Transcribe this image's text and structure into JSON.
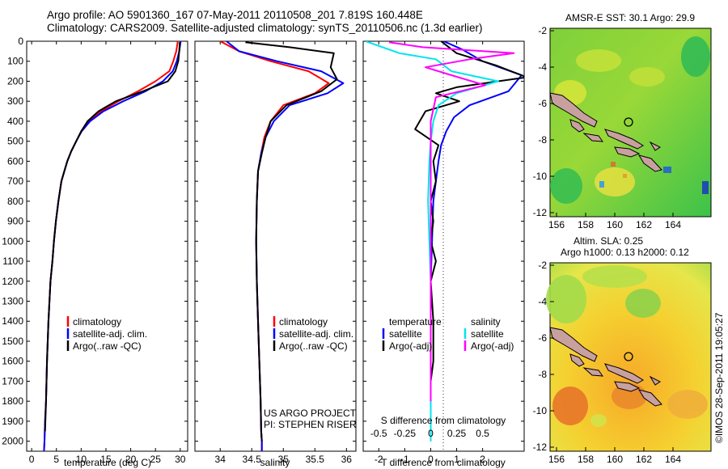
{
  "header": {
    "title_line1": "Argo profile: AO 5901360_167 07-May-2011 20110508_201 7.819S 160.448E",
    "title_line2": "Climatology: CARS2009. Satellite-adjusted climatology: synTS_20110506.nc (1.3d earlier)"
  },
  "colors": {
    "climatology": "#ff0000",
    "satellite": "#0000ff",
    "argo": "#000000",
    "salinity_satellite": "#00e5ee",
    "salinity_argo": "#ff00ff"
  },
  "chart_data": [
    {
      "id": "temperature",
      "type": "line",
      "xlabel": "temperature (deg C)",
      "ylabel": "",
      "xlim": [
        -1,
        31.5
      ],
      "ylim": [
        2050,
        0
      ],
      "xticks": [
        0,
        5,
        10,
        15,
        20,
        25,
        30
      ],
      "yticks": [
        0,
        100,
        200,
        300,
        400,
        500,
        600,
        700,
        800,
        900,
        1000,
        1100,
        1200,
        1300,
        1400,
        1500,
        1600,
        1700,
        1800,
        1900,
        2000
      ],
      "legend": [
        "climatology",
        "satellite-adj. clim.",
        "Argo(..raw -QC)"
      ],
      "series": [
        {
          "name": "climatology",
          "color": "#ff0000",
          "x": [
            29.5,
            29.2,
            28.6,
            27.8,
            25.0,
            21.5,
            17.5,
            14.0,
            11.5,
            10.0,
            9.0,
            8.0,
            7.2,
            6.6,
            6.0,
            5.4,
            4.9,
            4.5,
            4.2,
            3.8,
            3.4,
            3.1,
            2.9,
            2.7,
            2.6,
            2.5
          ],
          "y": [
            0,
            50,
            100,
            150,
            200,
            250,
            300,
            350,
            400,
            450,
            500,
            550,
            600,
            650,
            700,
            800,
            900,
            1000,
            1100,
            1200,
            1400,
            1600,
            1800,
            1900,
            2000,
            2050
          ]
        },
        {
          "name": "satellite-adj. clim.",
          "color": "#0000ff",
          "x": [
            30.1,
            29.8,
            29.3,
            28.5,
            26.5,
            23.0,
            18.5,
            14.5,
            11.8,
            10.1,
            9.0,
            8.0,
            7.2,
            6.6,
            6.0,
            5.4,
            4.9,
            4.5,
            4.2,
            3.8,
            3.4,
            3.1,
            2.9,
            2.7,
            2.6,
            2.5
          ],
          "y": [
            0,
            50,
            100,
            150,
            200,
            250,
            300,
            350,
            400,
            450,
            500,
            550,
            600,
            650,
            700,
            800,
            900,
            1000,
            1100,
            1200,
            1400,
            1600,
            1800,
            1900,
            2000,
            2050
          ]
        },
        {
          "name": "Argo(..raw -QC)",
          "color": "#000000",
          "x": [
            29.9,
            29.8,
            29.6,
            29.0,
            27.5,
            22.5,
            17.0,
            13.5,
            11.3,
            10.0,
            9.0,
            8.0,
            7.2,
            6.6,
            6.0,
            5.4,
            4.9,
            4.5,
            4.2,
            3.8,
            3.4,
            3.1,
            2.9,
            2.7
          ],
          "y": [
            5,
            50,
            100,
            150,
            200,
            250,
            300,
            350,
            400,
            450,
            500,
            550,
            600,
            650,
            700,
            800,
            900,
            1000,
            1100,
            1200,
            1400,
            1600,
            1800,
            1950
          ]
        }
      ]
    },
    {
      "id": "salinity",
      "type": "line",
      "xlabel": "salinity",
      "xlim": [
        33.6,
        36.15
      ],
      "ylim": [
        2050,
        0
      ],
      "xticks": [
        34,
        34.5,
        35,
        35.5,
        36
      ],
      "legend": [
        "climatology",
        "satellite-adj. clim.",
        "Argo(..raw -QC)"
      ],
      "annotation": [
        "US ARGO PROJECT",
        "PI: STEPHEN RISER"
      ],
      "series": [
        {
          "name": "climatology",
          "color": "#ff0000",
          "x": [
            34.0,
            34.3,
            34.8,
            35.4,
            35.72,
            35.5,
            35.0,
            34.8,
            34.7,
            34.65,
            34.6,
            34.58,
            34.57,
            34.58,
            34.6,
            34.62,
            34.64,
            34.65,
            34.66,
            34.66
          ],
          "y": [
            0,
            50,
            100,
            150,
            210,
            260,
            320,
            400,
            480,
            560,
            650,
            800,
            1000,
            1200,
            1400,
            1600,
            1800,
            1950,
            2000,
            2050
          ]
        },
        {
          "name": "satellite-adj. clim.",
          "color": "#0000ff",
          "x": [
            34.1,
            34.3,
            34.9,
            35.6,
            35.95,
            35.7,
            35.1,
            34.85,
            34.72,
            34.65,
            34.6,
            34.58,
            34.57,
            34.58,
            34.6,
            34.62,
            34.64,
            34.65,
            34.66,
            34.66
          ],
          "y": [
            0,
            50,
            100,
            150,
            210,
            260,
            320,
            400,
            480,
            560,
            650,
            800,
            1000,
            1200,
            1400,
            1600,
            1800,
            1950,
            2000,
            2050
          ]
        },
        {
          "name": "Argo(..raw -QC)",
          "color": "#000000",
          "x": [
            34.4,
            35.1,
            35.8,
            35.75,
            35.85,
            35.6,
            35.05,
            34.8,
            34.72,
            34.66,
            34.6,
            34.58,
            34.57,
            34.58,
            34.6,
            34.62,
            34.64,
            34.65,
            34.66
          ],
          "y": [
            5,
            30,
            60,
            130,
            190,
            250,
            320,
            400,
            480,
            560,
            650,
            800,
            1000,
            1200,
            1400,
            1600,
            1800,
            1950,
            2000
          ]
        }
      ]
    },
    {
      "id": "difference",
      "type": "line",
      "xlabel": "T difference from climatology",
      "xlabel_top": "S difference from climatology",
      "xlim": [
        -2.6,
        3.6
      ],
      "ylim": [
        2050,
        0
      ],
      "xticks": [
        -2,
        -1,
        0,
        1,
        2
      ],
      "xticks_s": [
        "-0.5",
        "-0.25",
        "0",
        "0.25",
        "0.5"
      ],
      "legend_temperature": [
        "temperature",
        "satellite",
        "Argo(-adj)"
      ],
      "legend_salinity": [
        "salinity",
        "satellite",
        "Argo(-adj)"
      ],
      "series": [
        {
          "name": "T satellite",
          "color": "#0000ff",
          "x": [
            0.5,
            1.2,
            2.0,
            3.5,
            3.0,
            1.5,
            0.9,
            0.6,
            0.4,
            0.3,
            0.2,
            0.1,
            0.05,
            0,
            0,
            0,
            0,
            0
          ],
          "y": [
            0,
            40,
            100,
            170,
            250,
            320,
            380,
            450,
            520,
            600,
            700,
            800,
            1000,
            1200,
            1400,
            1600,
            1800,
            2000
          ]
        },
        {
          "name": "T Argo(-adj)",
          "color": "#000000",
          "x": [
            0.4,
            0.6,
            1.0,
            2.5,
            3.7,
            1.0,
            0.2,
            1.1,
            -0.2,
            -0.6,
            0.3,
            0.1,
            0.2,
            0,
            0.1,
            0,
            0.2,
            0,
            0.1,
            0.1,
            0,
            0,
            0
          ],
          "y": [
            0,
            20,
            60,
            120,
            180,
            230,
            260,
            300,
            350,
            440,
            520,
            600,
            700,
            800,
            900,
            1000,
            1100,
            1200,
            1400,
            1600,
            1700,
            1800,
            1950
          ]
        },
        {
          "name": "S satellite",
          "color": "#00e5ee",
          "x": [
            -2.5,
            -1.2,
            0.2,
            0.8,
            2.6,
            1.0,
            0.3,
            0.1,
            0,
            -0.05,
            -0.1,
            -0.05,
            0,
            0,
            0
          ],
          "y": [
            0,
            60,
            90,
            150,
            200,
            260,
            320,
            400,
            500,
            600,
            800,
            1000,
            1200,
            1600,
            2000
          ]
        },
        {
          "name": "S Argo(-adj)",
          "color": "#ff00ff",
          "x": [
            -1.6,
            -0.3,
            3.2,
            1.5,
            -0.2,
            0.8,
            2.1,
            0.2,
            0,
            0,
            0
          ],
          "y": [
            5,
            30,
            60,
            90,
            130,
            170,
            220,
            280,
            400,
            800,
            1800
          ]
        }
      ]
    }
  ],
  "maps": {
    "sst_title": "AMSR-E SST: 30.1  Argo: 29.9",
    "sla_title1": "Altim. SLA: 0.25",
    "sla_title2": "Argo h1000: 0.13 h2000: 0.12",
    "yticks": [
      "-2",
      "-4",
      "-6",
      "-8",
      "-10",
      "-12"
    ],
    "xticks": [
      "156",
      "158",
      "160",
      "162",
      "164"
    ],
    "marker_lon": 160.448,
    "marker_lat": -7.819
  },
  "footer": {
    "credit": "©IMOS 28-Sep-2011 19:05:27"
  }
}
